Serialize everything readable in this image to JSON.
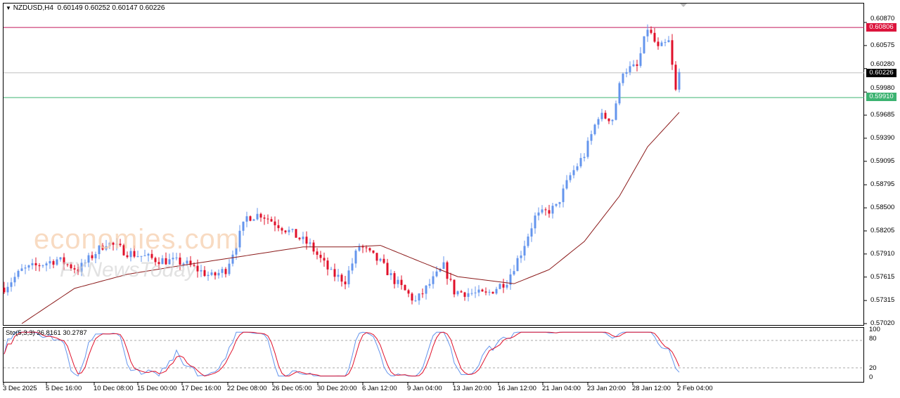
{
  "header": {
    "symbol": "NZDUSD,H4",
    "ohlc": "0.60149 0.60252 0.60147 0.60226"
  },
  "price_tags": {
    "resistance": "0.60806",
    "current": "0.60226",
    "support": "0.59910"
  },
  "colors": {
    "bull": "#6495ed",
    "bear": "#e0102a",
    "ma": "#8b1a1a",
    "resistance": "#c2185b",
    "support": "#3cb371",
    "current": "#000000",
    "stoch_main": "#6495ed",
    "stoch_signal": "#e0102a"
  },
  "watermark": {
    "line1": "economies.com",
    "line2": "FXNewsToday"
  },
  "stochastic": {
    "label": "Sto(5,3,3) 26.8161 30.2787",
    "levels": [
      "100",
      "80",
      "20",
      "0"
    ]
  },
  "chart_data": {
    "type": "candlestick",
    "title": "NZDUSD,H4",
    "y_ticks": [
      "0.60870",
      "0.60575",
      "0.60280",
      "0.59980",
      "0.59685",
      "0.59390",
      "0.59095",
      "0.58795",
      "0.58500",
      "0.58205",
      "0.57910",
      "0.57615",
      "0.57315",
      "0.57020"
    ],
    "ylim": [
      0.5702,
      0.6087
    ],
    "x_ticks": [
      "3 Dec 2025",
      "5 Dec 16:00",
      "10 Dec 08:00",
      "15 Dec 00:00",
      "17 Dec 16:00",
      "22 Dec 08:00",
      "26 Dec 05:00",
      "30 Dec 20:00",
      "6 Jan 12:00",
      "9 Jan 04:00",
      "13 Jan 20:00",
      "16 Jan 12:00",
      "21 Jan 04:00",
      "23 Jan 20:00",
      "28 Jan 12:00",
      "2 Feb 04:00"
    ],
    "horizontal_lines": [
      0.60806,
      0.60226,
      0.5991
    ],
    "close_path": [
      [
        0,
        0.5748
      ],
      [
        5,
        0.577
      ],
      [
        15,
        0.5784
      ],
      [
        21,
        0.5771
      ],
      [
        29,
        0.5806
      ],
      [
        35,
        0.5793
      ],
      [
        43,
        0.5784
      ],
      [
        51,
        0.578
      ],
      [
        59,
        0.5762
      ],
      [
        63,
        0.5771
      ],
      [
        69,
        0.5838
      ],
      [
        73,
        0.5842
      ],
      [
        81,
        0.582
      ],
      [
        87,
        0.5802
      ],
      [
        93,
        0.5766
      ],
      [
        97,
        0.5757
      ],
      [
        101,
        0.5802
      ],
      [
        107,
        0.578
      ],
      [
        111,
        0.5757
      ],
      [
        117,
        0.573
      ],
      [
        125,
        0.5775
      ],
      [
        128,
        0.5743
      ],
      [
        137,
        0.5739
      ],
      [
        143,
        0.5757
      ],
      [
        147,
        0.5793
      ],
      [
        151,
        0.5838
      ],
      [
        157,
        0.5851
      ],
      [
        161,
        0.5891
      ],
      [
        165,
        0.5918
      ],
      [
        169,
        0.5968
      ],
      [
        173,
        0.5964
      ],
      [
        176,
        0.6026
      ],
      [
        180,
        0.603
      ],
      [
        183,
        0.608
      ],
      [
        186,
        0.6053
      ],
      [
        189,
        0.6062
      ],
      [
        191,
        0.5999
      ],
      [
        192,
        0.6022
      ]
    ],
    "moving_average": [
      [
        5,
        0.5702
      ],
      [
        20,
        0.5747
      ],
      [
        35,
        0.5765
      ],
      [
        50,
        0.5776
      ],
      [
        69,
        0.5789
      ],
      [
        85,
        0.58
      ],
      [
        99,
        0.58
      ],
      [
        107,
        0.5802
      ],
      [
        119,
        0.578
      ],
      [
        129,
        0.5762
      ],
      [
        145,
        0.5753
      ],
      [
        155,
        0.5771
      ],
      [
        165,
        0.5807
      ],
      [
        175,
        0.5865
      ],
      [
        183,
        0.5928
      ],
      [
        192,
        0.5972
      ]
    ]
  }
}
